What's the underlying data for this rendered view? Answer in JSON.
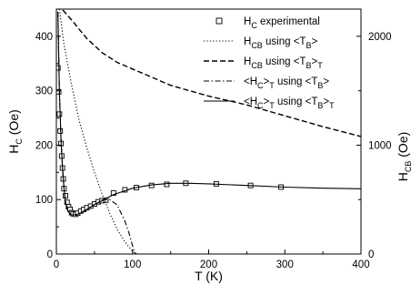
{
  "chart_data": {
    "type": "line",
    "xlabel": "T (K)",
    "ylabel_left": {
      "main": "H",
      "sub": "C",
      "unit": " (Oe)"
    },
    "ylabel_right": {
      "main": "H",
      "sub": "CB",
      "unit": " (Oe)"
    },
    "xlim": [
      0,
      400
    ],
    "ylim_left": [
      0,
      450
    ],
    "ylim_right": [
      0,
      2250
    ],
    "xticks": [
      "0",
      "100",
      "200",
      "300",
      "400"
    ],
    "yticks_left": [
      "0",
      "100",
      "200",
      "300",
      "400"
    ],
    "yticks_right": [
      "0",
      "1000",
      "2000"
    ],
    "grid": false,
    "legend_position": "top-right",
    "legend": [
      {
        "style": "square-markers",
        "parts": [
          [
            "H",
            ""
          ],
          [
            "C",
            "sub"
          ],
          [
            " experimental",
            ""
          ]
        ]
      },
      {
        "style": "dotted",
        "parts": [
          [
            "H",
            ""
          ],
          [
            "CB",
            "sub"
          ],
          [
            " using <T",
            ""
          ],
          [
            "B",
            "sub"
          ],
          [
            ">",
            ""
          ]
        ]
      },
      {
        "style": "dashed",
        "parts": [
          [
            "H",
            ""
          ],
          [
            "CB",
            "sub"
          ],
          [
            " using <T",
            ""
          ],
          [
            "B",
            "sub"
          ],
          [
            ">",
            ""
          ],
          [
            "T",
            "sub"
          ]
        ]
      },
      {
        "style": "dashdot",
        "parts": [
          [
            "<H",
            ""
          ],
          [
            "C",
            "sub"
          ],
          [
            ">",
            ""
          ],
          [
            "T",
            "sub"
          ],
          [
            " using <T",
            ""
          ],
          [
            "B",
            "sub"
          ],
          [
            ">",
            ""
          ]
        ]
      },
      {
        "style": "solid",
        "parts": [
          [
            "<H",
            ""
          ],
          [
            "C",
            "sub"
          ],
          [
            ">",
            ""
          ],
          [
            "T",
            "sub"
          ],
          [
            " using <T",
            ""
          ],
          [
            "B",
            "sub"
          ],
          [
            ">",
            ""
          ],
          [
            "T",
            "sub"
          ]
        ]
      }
    ],
    "series": [
      {
        "style": "square-markers",
        "axis": "left",
        "x": [
          2,
          3,
          4,
          5,
          6,
          7,
          8,
          9,
          10,
          12,
          14,
          16,
          18,
          20,
          22,
          25,
          28,
          32,
          36,
          40,
          45,
          50,
          55,
          60,
          65,
          75,
          90,
          105,
          125,
          145,
          170,
          210,
          255,
          295
        ],
        "y": [
          342,
          298,
          257,
          226,
          203,
          180,
          158,
          138,
          120,
          107,
          95,
          87,
          82,
          76,
          74,
          73,
          75,
          79,
          82,
          85,
          88,
          92,
          96,
          98,
          99,
          112,
          118,
          122,
          126,
          128,
          130,
          129,
          126,
          123
        ]
      },
      {
        "style": "dotted",
        "axis": "left",
        "x": [
          4,
          10,
          20,
          30,
          40,
          50,
          60,
          70,
          80,
          90,
          100,
          105
        ],
        "y": [
          450,
          385,
          310,
          245,
          195,
          150,
          110,
          75,
          45,
          22,
          5,
          0
        ]
      },
      {
        "style": "dashed",
        "axis": "right",
        "x": [
          0,
          10,
          20,
          40,
          60,
          80,
          100,
          120,
          150,
          200,
          250,
          300,
          350,
          400
        ],
        "y": [
          2290,
          2230,
          2150,
          1980,
          1850,
          1760,
          1700,
          1640,
          1550,
          1450,
          1370,
          1270,
          1170,
          1080
        ]
      },
      {
        "style": "dashdot",
        "axis": "left",
        "x": [
          2,
          4,
          6,
          8,
          10,
          12,
          15,
          18,
          20,
          25,
          30,
          40,
          50,
          60,
          70,
          80,
          90,
          95,
          100,
          102,
          105
        ],
        "y": [
          445,
          300,
          215,
          160,
          120,
          96,
          80,
          74,
          72,
          72,
          74,
          82,
          91,
          99,
          100,
          90,
          60,
          40,
          15,
          5,
          0
        ]
      },
      {
        "style": "solid",
        "axis": "left",
        "x": [
          2,
          4,
          6,
          8,
          10,
          12,
          15,
          18,
          20,
          25,
          30,
          40,
          50,
          60,
          75,
          100,
          125,
          150,
          175,
          200,
          250,
          300,
          350,
          400
        ],
        "y": [
          445,
          300,
          215,
          160,
          120,
          96,
          80,
          74,
          72,
          72,
          74,
          82,
          91,
          98,
          109,
          121,
          127,
          130,
          130,
          129,
          126,
          123,
          121,
          120
        ]
      }
    ]
  }
}
